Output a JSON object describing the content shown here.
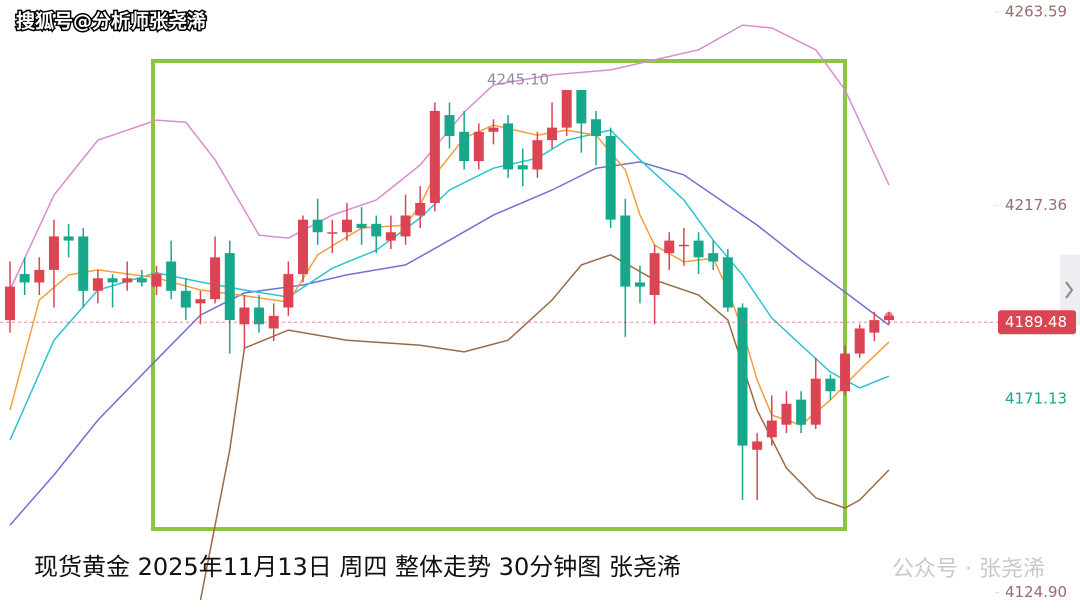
{
  "chart_data": {
    "type": "candlestick",
    "source_watermark": "搜狐号@分析师张尧浠",
    "title": "现货黄金 2025年11月13日 周四 整体走势 30分钟图 张尧浠",
    "watermark": "公众号 · 张尧浠",
    "annotation": "4245.10",
    "up_color": "#db4452",
    "down_color": "#17a88b",
    "ylim": [
      4120,
      4266.5
    ],
    "yticks": [
      {
        "value": 4124.9,
        "label": "4124.90"
      },
      4217.36,
      4263.59
    ],
    "last_price": {
      "value": 4189.48,
      "color": "#db4452"
    },
    "ma_price": {
      "value": 4171.13,
      "color": "#17a88b"
    },
    "candles": {
      "open": [
        4190,
        4201,
        4199,
        4202,
        4210,
        4210,
        4197,
        4200,
        4199,
        4200,
        4198,
        4204,
        4197,
        4194,
        4195,
        4206,
        4189,
        4193,
        4188,
        4193,
        4201,
        4214,
        4211,
        4211,
        4213,
        4213,
        4209,
        4210,
        4215,
        4218,
        4239,
        4235,
        4228,
        4235,
        4237,
        4227,
        4226,
        4233,
        4236,
        4245,
        4238,
        4234,
        4215,
        4199,
        4196,
        4206,
        4208,
        4209,
        4206,
        4205,
        4193,
        4159,
        4162,
        4165,
        4171,
        4165,
        4176,
        4173,
        4182,
        4187,
        4190
      ],
      "high": [
        4204,
        4205,
        4205,
        4214,
        4213,
        4212,
        4202,
        4201,
        4204,
        4202,
        4203,
        4209,
        4200,
        4197,
        4210,
        4209,
        4196,
        4196,
        4194,
        4204,
        4215,
        4219,
        4214,
        4218,
        4217,
        4215,
        4215,
        4220,
        4222,
        4242,
        4242,
        4240,
        4237,
        4238,
        4239,
        4231,
        4235,
        4242,
        4245,
        4245,
        4240,
        4236,
        4219,
        4203,
        4208,
        4211,
        4212,
        4211,
        4209,
        4207,
        4194,
        4163,
        4172,
        4173,
        4173,
        4181,
        4177,
        4184,
        4189,
        4192,
        4192
      ],
      "low": [
        4187,
        4196,
        4196,
        4193,
        4205,
        4193,
        4194,
        4193,
        4197,
        4198,
        4196,
        4195,
        4190,
        4189,
        4194,
        4182,
        4183,
        4187,
        4185,
        4191,
        4199,
        4208,
        4206,
        4209,
        4208,
        4206,
        4207,
        4208,
        4212,
        4216,
        4231,
        4226,
        4226,
        4232,
        4224,
        4222,
        4224,
        4231,
        4234,
        4230,
        4227,
        4212,
        4186,
        4194,
        4189,
        4202,
        4203,
        4201,
        4202,
        4192,
        4147,
        4147,
        4160,
        4163,
        4163,
        4164,
        4171,
        4172,
        4181,
        4185,
        4189
      ],
      "close": [
        4198,
        4199,
        4202,
        4210,
        4209,
        4197,
        4200,
        4199,
        4200,
        4199,
        4201,
        4197,
        4193,
        4195,
        4205,
        4190,
        4193,
        4189,
        4191,
        4201,
        4214,
        4211,
        4211,
        4214,
        4212,
        4210,
        4211,
        4215,
        4218,
        4240,
        4234,
        4228,
        4235,
        4236,
        4226,
        4226,
        4233,
        4236,
        4245,
        4237,
        4234,
        4214,
        4198,
        4198,
        4206,
        4209,
        4208,
        4205,
        4204,
        4193,
        4160,
        4161,
        4166,
        4170,
        4165,
        4176,
        4173,
        4182,
        4188,
        4190,
        4191
      ]
    },
    "lines": [
      {
        "color": "#d98ccf",
        "x": [
          0,
          3,
          6,
          10,
          12,
          14,
          17,
          19,
          22,
          25,
          28,
          31,
          33,
          37,
          41,
          47,
          50,
          52,
          55,
          57,
          60
        ],
        "values": [
          4197.2,
          4219.9,
          4233.0,
          4237.8,
          4237.3,
          4228.3,
          4210.3,
          4209.6,
          4215.1,
          4218.7,
          4227.1,
          4239.7,
          4246.2,
          4248.6,
          4249.8,
          4254.6,
          4260.5,
          4259.8,
          4254.6,
          4245.0,
          4222.3
        ]
      },
      {
        "color": "#9a6a44",
        "x": [
          13,
          15,
          16,
          19,
          23,
          28,
          31,
          34,
          37,
          39,
          41,
          44,
          47,
          49,
          51,
          53,
          55,
          57,
          58,
          60
        ],
        "values": [
          4123.1,
          4159.0,
          4183.3,
          4187.6,
          4185.2,
          4184.0,
          4182.4,
          4185.2,
          4194.8,
          4203.2,
          4205.6,
          4199.6,
          4196.0,
          4190.0,
          4168.5,
          4154.6,
          4147.5,
          4145.1,
          4147.0,
          4154.2
        ]
      },
      {
        "color": "#6f72d0",
        "x": [
          0,
          3,
          6,
          10,
          13,
          16,
          20,
          23,
          27,
          30,
          33,
          37,
          40,
          43,
          46,
          48,
          51,
          54,
          57,
          60
        ],
        "values": [
          4141.0,
          4153.0,
          4166.1,
          4180.5,
          4191.2,
          4196.5,
          4198.4,
          4200.8,
          4203.2,
          4209.1,
          4215.1,
          4221.1,
          4226.3,
          4227.8,
          4224.7,
          4219.9,
          4212.7,
          4204.4,
          4196.7,
          4188.8
        ]
      },
      {
        "color": "#2cc3d0",
        "x": [
          0,
          3,
          6,
          10,
          13,
          16,
          19,
          22,
          25,
          28,
          30,
          33,
          36,
          38,
          41,
          43,
          46,
          48,
          50,
          52,
          54,
          56,
          58,
          60
        ],
        "values": [
          4161.3,
          4185.2,
          4197.2,
          4201.3,
          4199.1,
          4197.2,
          4195.5,
          4202.4,
          4206.7,
          4214.4,
          4221.1,
          4226.3,
          4228.7,
          4233.0,
          4235.4,
          4228.3,
          4218.7,
          4209.1,
          4200.8,
          4190.5,
          4184.0,
          4177.6,
          4173.8,
          4176.6
        ]
      },
      {
        "color": "#f0a040",
        "x": [
          0,
          2,
          4,
          6,
          10,
          13,
          16,
          19,
          21,
          24,
          27,
          28,
          29,
          31,
          33,
          36,
          38,
          40,
          42,
          43,
          44,
          46,
          48,
          49,
          50,
          51,
          52,
          54,
          56,
          58,
          60
        ],
        "values": [
          4168.5,
          4194.8,
          4200.8,
          4202.0,
          4200.1,
          4197.2,
          4195.8,
          4194.3,
          4205.6,
          4212.0,
          4212.7,
          4217.5,
          4224.7,
          4233.5,
          4236.6,
          4234.2,
          4235.4,
          4234.2,
          4225.9,
          4215.1,
          4207.9,
          4203.9,
          4204.8,
          4197.2,
          4187.6,
          4175.7,
          4167.3,
          4164.9,
          4170.9,
          4178.1,
          4184.8
        ]
      }
    ]
  }
}
